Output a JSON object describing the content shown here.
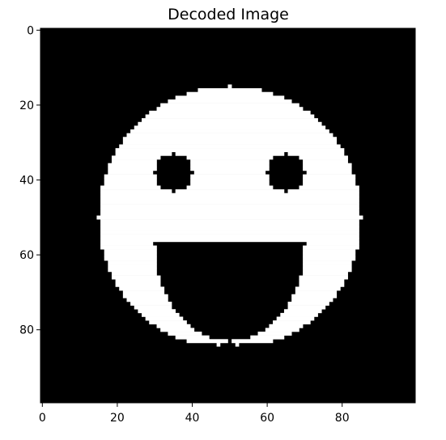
{
  "chart_data": {
    "type": "heatmap",
    "title": "Decoded Image",
    "xlabel": "",
    "ylabel": "",
    "xlim": [
      -0.5,
      99.5
    ],
    "ylim": [
      99.5,
      -0.5
    ],
    "x_ticks": [
      0,
      20,
      40,
      60,
      80
    ],
    "y_ticks": [
      0,
      20,
      40,
      60,
      80
    ],
    "x_tick_labels": [
      "0",
      "20",
      "40",
      "60",
      "80"
    ],
    "y_tick_labels": [
      "0",
      "20",
      "40",
      "60",
      "80"
    ],
    "grid": false,
    "colormap": "gray",
    "grid_size": [
      100,
      100
    ],
    "value_range": [
      0,
      1
    ],
    "background_value": 0,
    "face": {
      "value": 1,
      "center": [
        50,
        50
      ],
      "radius_x": 35,
      "radius_y": 35,
      "right_edge_at_row_60": 84,
      "bottom_row": 83
    },
    "eyes": {
      "value": 0,
      "items": [
        {
          "name": "left-eye",
          "center": [
            35,
            38
          ],
          "radius": 5
        },
        {
          "name": "right-eye",
          "center": [
            65,
            38
          ],
          "radius": 5
        }
      ]
    },
    "mouth": {
      "value": 0,
      "top_row": 57,
      "x_range": [
        30,
        70
      ],
      "center_x": 50,
      "bottom_row": 83
    },
    "dots": {
      "value": 1,
      "row": 84,
      "items": [
        {
          "name": "dot-left",
          "col": 47
        },
        {
          "name": "dot-right",
          "col": 52
        }
      ]
    }
  }
}
